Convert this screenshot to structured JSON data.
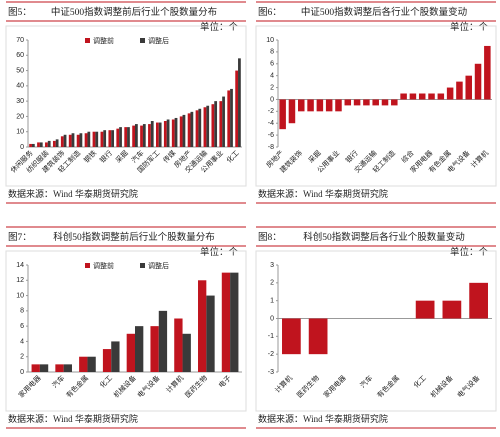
{
  "chart_data": [
    {
      "type": "bar",
      "figure_label": "图5：",
      "title": "中证500指数调整前后行业个股数量分布",
      "unit": "单位：个",
      "source": "数据来源：Wind 华泰期货研究院",
      "categories": [
        "休闲服务",
        null,
        "纺织服装",
        null,
        "建筑装饰",
        null,
        "轻工制造",
        null,
        "钢铁",
        null,
        "银行",
        null,
        "采掘",
        null,
        "汽车",
        null,
        "国防军工",
        null,
        "传媒",
        null,
        "房地产",
        null,
        "交通运输",
        null,
        "公用事业",
        null,
        "化工"
      ],
      "series": [
        {
          "name": "调整前",
          "color": "#c0141e",
          "values": [
            2,
            3,
            3,
            4,
            7,
            8,
            8,
            9,
            10,
            10,
            11,
            12,
            13,
            14,
            14,
            15,
            16,
            17,
            18,
            20,
            22,
            24,
            26,
            28,
            30,
            37,
            50
          ]
        },
        {
          "name": "调整后",
          "color": "#3a3a3a",
          "values": [
            2,
            3,
            4,
            5,
            8,
            9,
            9,
            10,
            10,
            11,
            11,
            13,
            13,
            15,
            15,
            17,
            16,
            18,
            19,
            21,
            23,
            25,
            27,
            30,
            33,
            38,
            58
          ]
        }
      ],
      "ylim": [
        0,
        70
      ],
      "yticks": [
        0,
        10,
        20,
        30,
        40,
        50,
        60,
        70
      ],
      "legend": "top"
    },
    {
      "type": "bar",
      "figure_label": "图6：",
      "title": "中证500指数调整后各行业个股数量变动",
      "unit": "单位：个",
      "source": "数据来源：Wind 华泰期货研究院",
      "categories": [
        "房地产",
        null,
        "建筑装饰",
        null,
        "采掘",
        null,
        "公用事业",
        null,
        "银行",
        null,
        "交通运输",
        null,
        "轻工制造",
        null,
        "综合",
        null,
        "家用电器",
        null,
        "有色金属",
        null,
        "电气设备",
        null,
        "计算机"
      ],
      "values": [
        -5,
        -4,
        -2,
        -2,
        -2,
        -2,
        -2,
        -1,
        -1,
        -1,
        -1,
        -1,
        -1,
        1,
        1,
        1,
        1,
        1,
        2,
        3,
        4,
        6,
        9
      ],
      "color": "#c0141e",
      "ylim": [
        -8,
        10
      ],
      "yticks": [
        -8,
        -6,
        -4,
        -2,
        0,
        2,
        4,
        6,
        8,
        10
      ]
    },
    {
      "type": "bar",
      "figure_label": "图7：",
      "title": "科创50指数调整前后行业个股数量分布",
      "unit": "单位：个",
      "source": "数据来源：Wind 华泰期货研究院",
      "categories": [
        "家用电器",
        "汽车",
        "有色金属",
        "化工",
        "机械设备",
        "电气设备",
        "计算机",
        "医药生物",
        "电子"
      ],
      "series": [
        {
          "name": "调整前",
          "color": "#c0141e",
          "values": [
            1,
            1,
            2,
            3,
            5,
            6,
            7,
            12,
            13
          ]
        },
        {
          "name": "调整后",
          "color": "#3a3a3a",
          "values": [
            1,
            1,
            2,
            4,
            6,
            8,
            5,
            10,
            13
          ]
        }
      ],
      "ylim": [
        0,
        14
      ],
      "yticks": [
        0,
        2,
        4,
        6,
        8,
        10,
        12,
        14
      ],
      "legend": "top"
    },
    {
      "type": "bar",
      "figure_label": "图8：",
      "title": "科创50指数调整后各行业个股数量变动",
      "unit": "单位：个",
      "source": "数据来源：Wind 华泰期货研究院",
      "categories": [
        "计算机",
        "医药生物",
        "家用电器",
        "汽车",
        "有色金属",
        "化工",
        "机械设备",
        "电气设备"
      ],
      "values": [
        -2,
        -2,
        0,
        0,
        0,
        1,
        1,
        2
      ],
      "color": "#c0141e",
      "ylim": [
        -3,
        3
      ],
      "yticks": [
        -3,
        -2,
        -1,
        0,
        1,
        2,
        3
      ]
    }
  ]
}
